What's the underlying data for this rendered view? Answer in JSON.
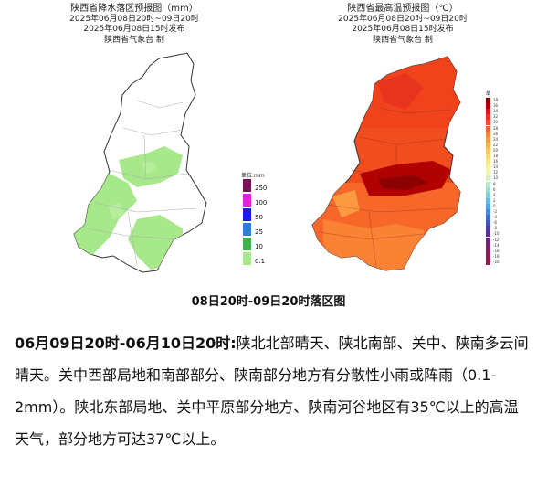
{
  "left_map": {
    "title": "陕西省降水落区预报图（mm）",
    "period": "2025年06月08日20时~09日20时",
    "issued": "2025年06月08日15时发布",
    "agency": "陕西省气象台 制",
    "legend": {
      "unit": "单位:mm",
      "items": [
        {
          "label": "250",
          "color": "#7a0f5a"
        },
        {
          "label": "100",
          "color": "#e61ee6"
        },
        {
          "label": "50",
          "color": "#1a1ae6"
        },
        {
          "label": "25",
          "color": "#2b7fe0"
        },
        {
          "label": "10",
          "color": "#3cb44a"
        },
        {
          "label": "0.1",
          "color": "#a6e88a"
        }
      ]
    }
  },
  "right_map": {
    "title": "陕西省最高温预报图（℃）",
    "period": "2025年06月08日20时~09日20时",
    "issued": "2025年06月08日15时发布",
    "agency": "陕西省气象台 制",
    "legend": {
      "unit": "单位:℃",
      "labels": [
        "38",
        "36",
        "34",
        "32",
        "30",
        "28",
        "26",
        "24",
        "22",
        "20",
        "18",
        "16",
        "14",
        "12",
        "10",
        "8",
        "6",
        "4",
        "2",
        "0",
        "-2",
        "-4",
        "-6",
        "-8",
        "-10",
        "-12",
        "-14",
        "-16",
        "-18",
        "-20"
      ],
      "colors": [
        "#8b0000",
        "#b00000",
        "#d21a1a",
        "#e8331e",
        "#f24d1f",
        "#f7672a",
        "#fa8234",
        "#fb9a40",
        "#fcb24c",
        "#fdc65a",
        "#fdd96a",
        "#fde67f",
        "#fbf19a",
        "#f0f5b4",
        "#d9f0c2",
        "#bde8c8",
        "#9fdcd0",
        "#7fcede",
        "#63bde7",
        "#4aa7ec",
        "#3b8de6",
        "#3a6fd8",
        "#3f53c4",
        "#4b3cae",
        "#5a2c98",
        "#6a2385",
        "#7a1d73",
        "#861a63",
        "#8f1a55",
        "#961a48"
      ]
    }
  },
  "caption": "08日20时-09日20时落区图",
  "description": {
    "lead": "06月09日20时-06月10日20时:",
    "body": "陕北北部晴天、陕北南部、关中、陕南多云间晴天。关中西部局地和南部部分、陕南部分地方有分散性小雨或阵雨（0.1-2mm）。陕北东部局地、关中平原部分地方、陕南河谷地区有35℃以上的高温天气，部分地方可达37℃以上。"
  }
}
